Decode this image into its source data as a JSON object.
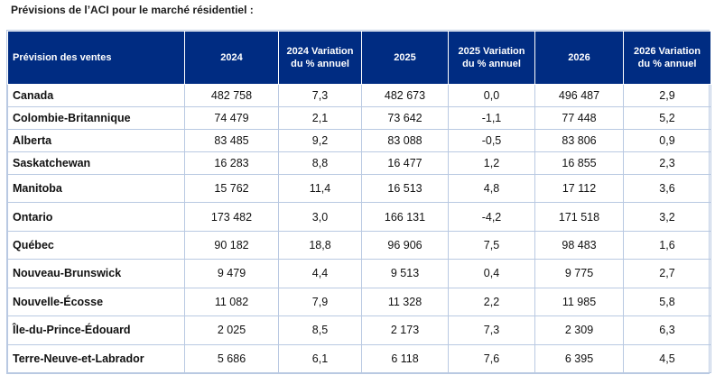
{
  "caption": "Prévisions de l’ACI pour le marché résidentiel :",
  "table": {
    "headers": [
      "Prévision des ventes",
      "2024",
      "2024 Variation du % annuel",
      "2025",
      "2025 Variation du % annuel",
      "2026",
      "2026 Variation du % annuel"
    ],
    "rows": [
      [
        "Canada",
        "482 758",
        "7,3",
        "482 673",
        "0,0",
        "496 487",
        "2,9"
      ],
      [
        "Colombie-Britannique",
        "74 479",
        "2,1",
        "73 642",
        "-1,1",
        "77 448",
        "5,2"
      ],
      [
        "Alberta",
        "83 485",
        "9,2",
        "83 088",
        "-0,5",
        "83 806",
        "0,9"
      ],
      [
        "Saskatchewan",
        "16 283",
        "8,8",
        "16 477",
        "1,2",
        "16 855",
        "2,3"
      ],
      [
        "Manitoba",
        "15 762",
        "11,4",
        "16 513",
        "4,8",
        "17 112",
        "3,6"
      ],
      [
        "Ontario",
        "173 482",
        "3,0",
        "166 131",
        "-4,2",
        "171 518",
        "3,2"
      ],
      [
        "Québec",
        "90 182",
        "18,8",
        "96 906",
        "7,5",
        "98 483",
        "1,6"
      ],
      [
        "Nouveau-Brunswick",
        "9 479",
        "4,4",
        "9 513",
        "0,4",
        "9 775",
        "2,7"
      ],
      [
        "Nouvelle-Écosse",
        "11 082",
        "7,9",
        "11 328",
        "2,2",
        "11 985",
        "5,8"
      ],
      [
        "Île-du-Prince-Édouard",
        "2 025",
        "8,5",
        "2 173",
        "7,3",
        "2 309",
        "6,3"
      ],
      [
        "Terre-Neuve-et-Labrador",
        "5 686",
        "6,1",
        "6 118",
        "7,6",
        "6 395",
        "4,5"
      ]
    ]
  }
}
